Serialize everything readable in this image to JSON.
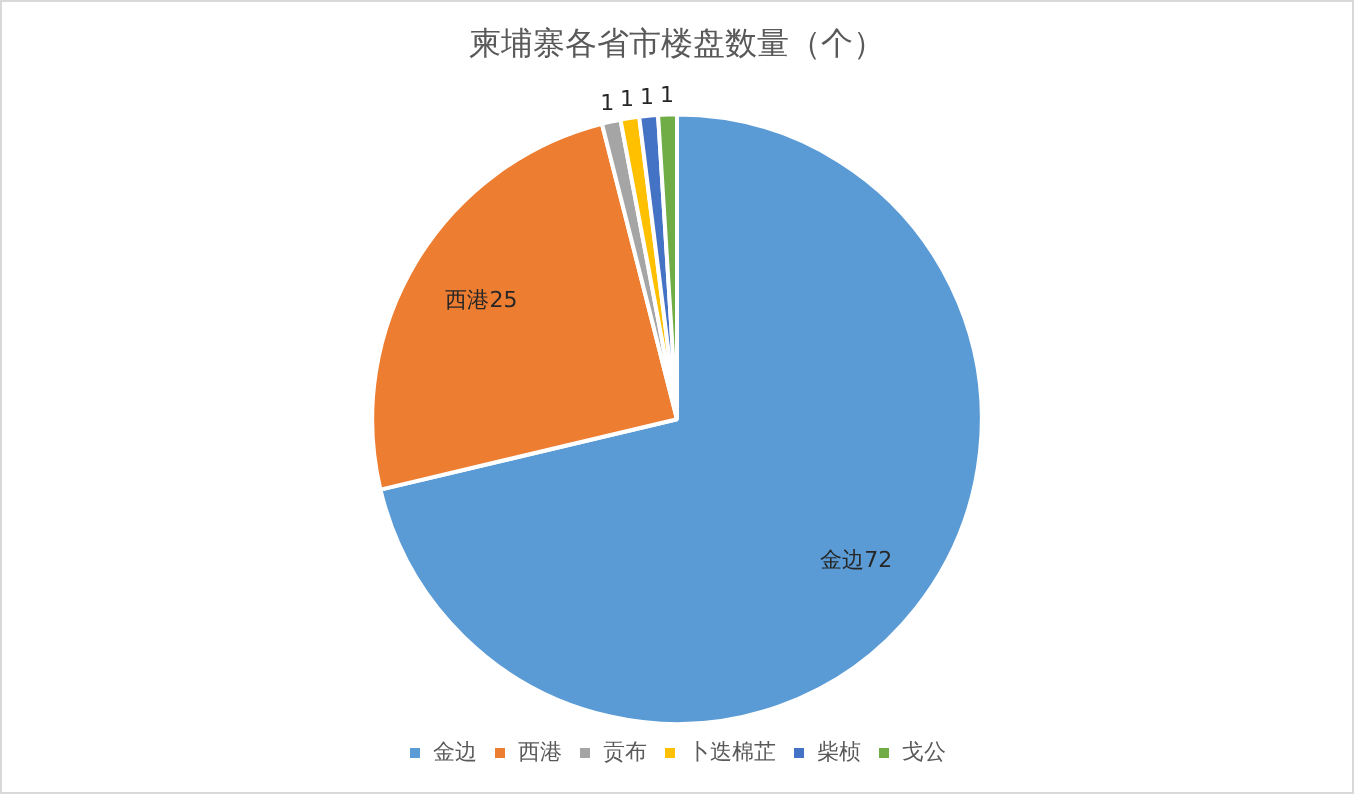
{
  "chart_data": {
    "type": "pie",
    "title": "柬埔寨各省市楼盘数量（个）",
    "categories": [
      "金边",
      "西港",
      "贡布",
      "卜迭棉芷",
      "柴桢",
      "戈公"
    ],
    "values": [
      72,
      25,
      1,
      1,
      1,
      1
    ],
    "colors": [
      "#5b9bd5",
      "#ed7d31",
      "#a5a5a5",
      "#ffc000",
      "#4472c4",
      "#70ad47"
    ],
    "value_labels": [
      "金边72",
      "西港25",
      "1",
      "1",
      "1",
      "1"
    ],
    "legend": "bottom"
  }
}
